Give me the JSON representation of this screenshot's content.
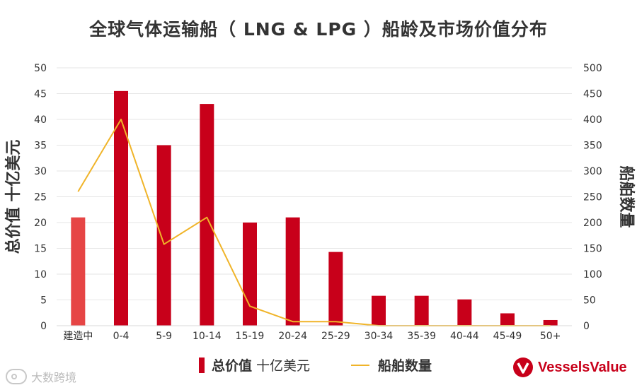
{
  "title": "全球气体运输船（ LNG & LPG ）船龄及市场价值分布",
  "chart_data": {
    "type": "bar",
    "categories": [
      "建造中",
      "0-4",
      "5-9",
      "10-14",
      "15-19",
      "20-24",
      "25-29",
      "30-34",
      "35-39",
      "40-44",
      "45-49",
      "50+"
    ],
    "series": [
      {
        "name": "总价值 十亿美元",
        "type": "bar",
        "axis": "left",
        "values": [
          21,
          45.5,
          35,
          43,
          20,
          21,
          14.3,
          5.8,
          5.8,
          5.1,
          2.4,
          1.1
        ],
        "colors": [
          "#e64545",
          "#c8001a",
          "#c8001a",
          "#c8001a",
          "#c8001a",
          "#c8001a",
          "#c8001a",
          "#c8001a",
          "#c8001a",
          "#c8001a",
          "#c8001a",
          "#c8001a"
        ]
      },
      {
        "name": "船舶数量",
        "type": "line",
        "axis": "right",
        "values": [
          260,
          400,
          158,
          210,
          38,
          8,
          8,
          0,
          0,
          0,
          0,
          0
        ],
        "color": "#f0b429"
      }
    ],
    "ylabel_left": "总价值 十亿美元",
    "ylabel_right": "船舶数量",
    "ylim_left": [
      0,
      50
    ],
    "ylim_right": [
      0,
      500
    ],
    "yticks_left": [
      0,
      5,
      10,
      15,
      20,
      25,
      30,
      35,
      40,
      45,
      50
    ],
    "yticks_right": [
      0,
      50,
      100,
      150,
      200,
      250,
      300,
      350,
      400,
      450,
      500
    ],
    "grid": true,
    "legend_position": "bottom-center"
  },
  "legend": {
    "bar_bold": "总价值",
    "bar_rest": " 十亿美元",
    "line_label": "船舶数量"
  },
  "logo": {
    "text": "VesselsValue",
    "color": "#c8001a"
  },
  "watermark": {
    "text": "大数跨境"
  }
}
